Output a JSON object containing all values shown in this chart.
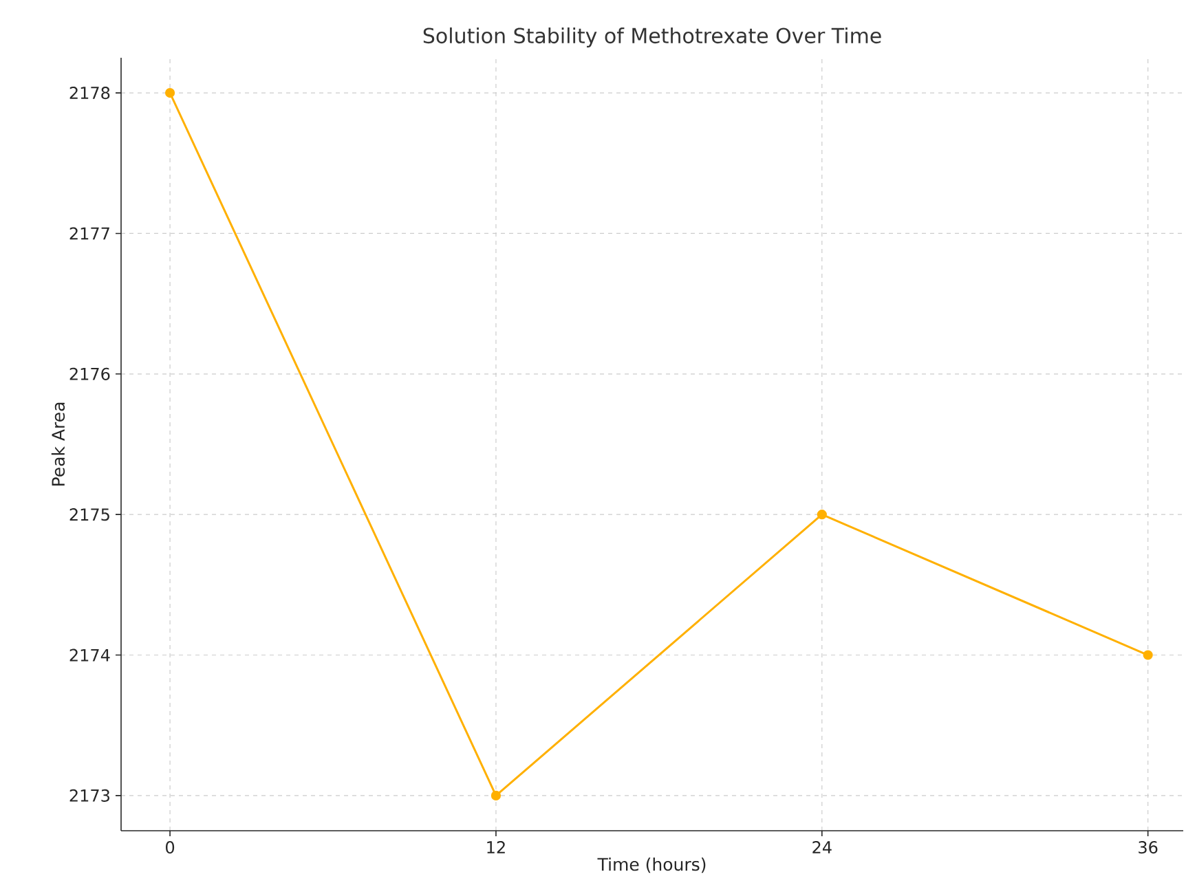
{
  "chart_data": {
    "type": "line",
    "title": "Solution Stability of Methotrexate Over Time",
    "xlabel": "Time (hours)",
    "ylabel": "Peak Area",
    "x": [
      0,
      12,
      24,
      36
    ],
    "series": [
      {
        "color": "#ffb000",
        "values": [
          2178,
          2173,
          2175,
          2174
        ]
      }
    ],
    "xlim": [
      -1.8,
      37.3
    ],
    "ylim": [
      2172.75,
      2178.25
    ],
    "xticks": [
      0,
      12,
      24,
      36
    ],
    "yticks": [
      2173,
      2174,
      2175,
      2176,
      2177,
      2178
    ],
    "grid": true,
    "marker": "circle",
    "line_style": "solid"
  }
}
